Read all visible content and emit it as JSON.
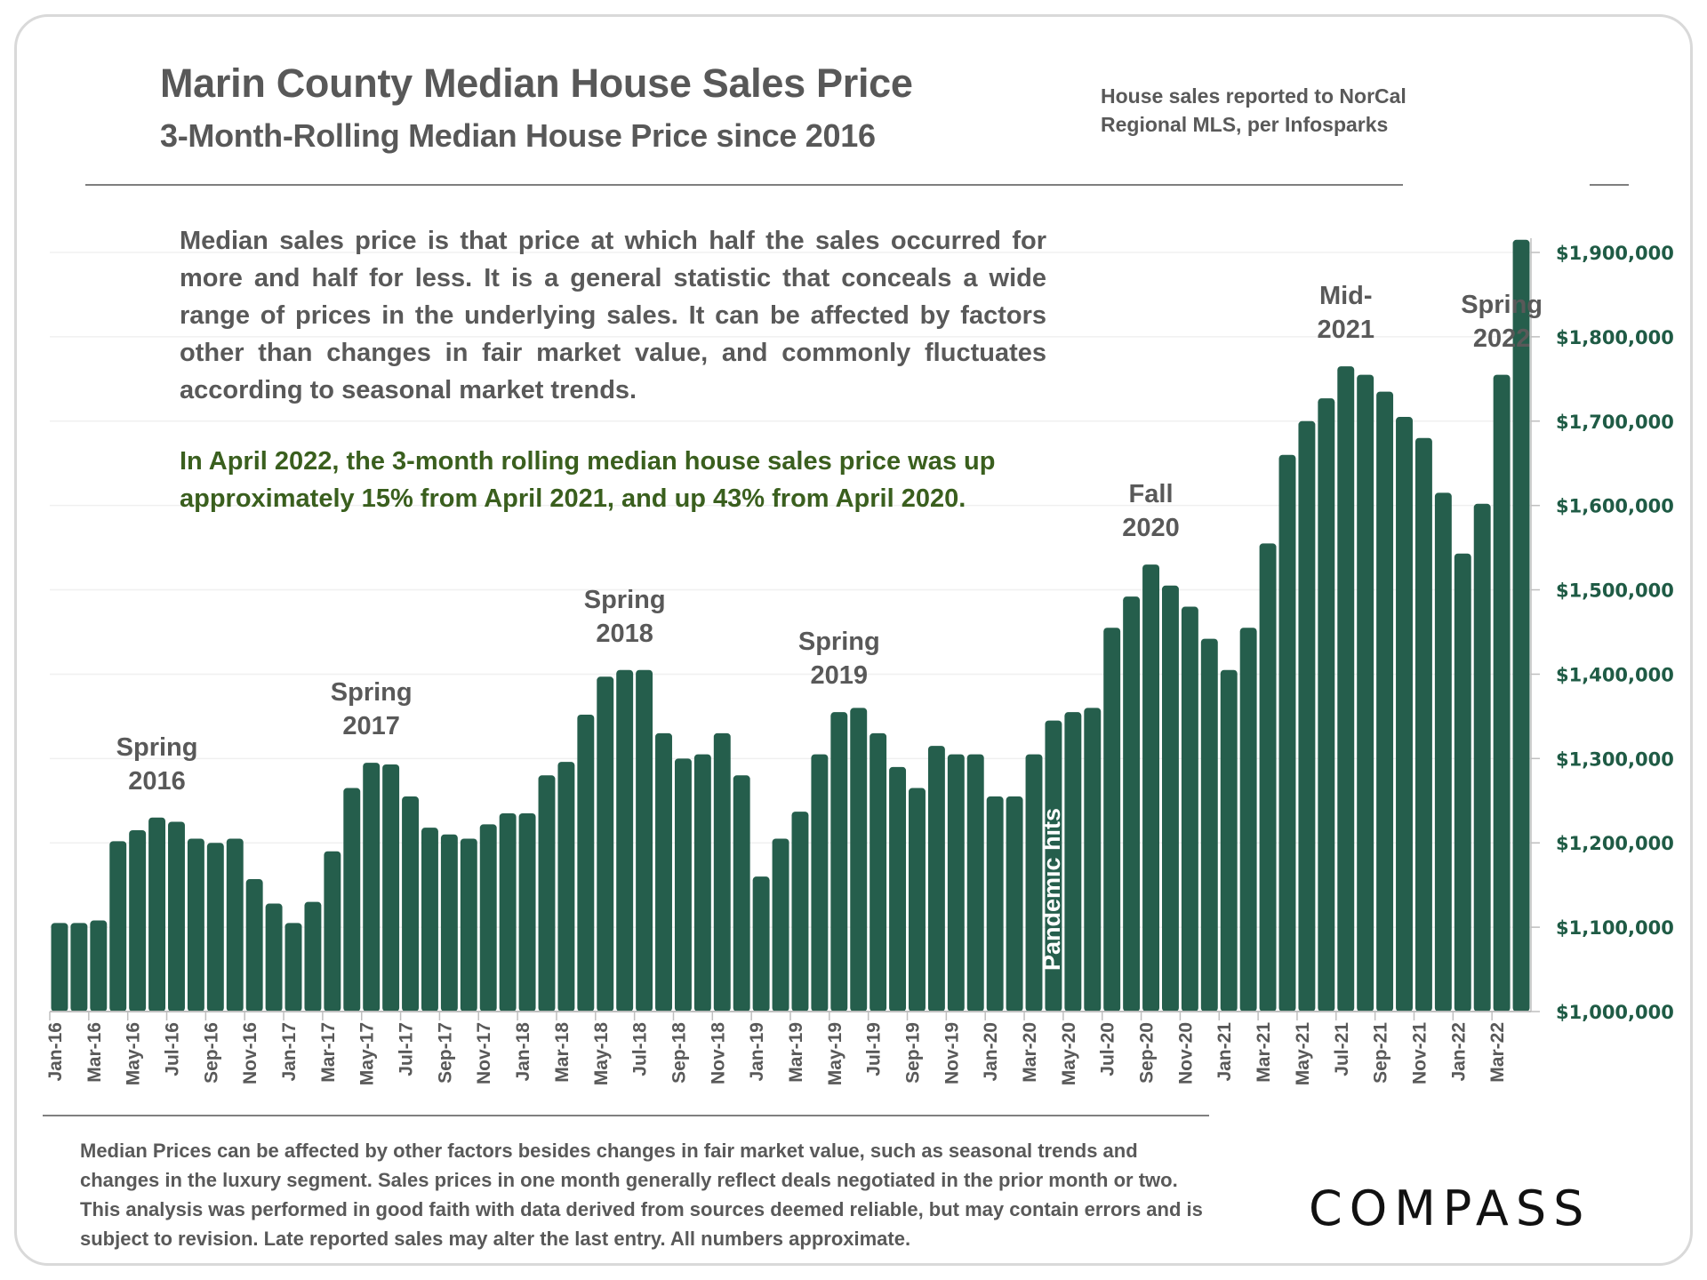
{
  "header": {
    "title": "Marin County Median House Sales Price",
    "subtitle": "3-Month-Rolling Median House Price since 2016",
    "source": [
      "House sales reported to NorCal",
      "Regional MLS, per Infosparks"
    ]
  },
  "description": "Median sales price is that price at which half the sales occurred for more and half for less. It is a general statistic that conceals a wide range of prices in the underlying sales. It can be affected by factors other than changes in fair market value, and commonly fluctuates according to seasonal market trends.",
  "highlight": "In April 2022, the 3-month rolling median house sales price was up approximately 15% from April 2021, and up 43% from April 2020.",
  "annotations": [
    {
      "lines": [
        "Spring",
        "2016"
      ],
      "month": "Jun-16"
    },
    {
      "lines": [
        "Spring",
        "2017"
      ],
      "month": "May-17"
    },
    {
      "lines": [
        "Spring",
        "2018"
      ],
      "month": "Jun-18"
    },
    {
      "lines": [
        "Spring",
        "2019"
      ],
      "month": "May-19"
    },
    {
      "lines": [
        "Fall",
        "2020"
      ],
      "month": "Sep-20"
    },
    {
      "lines": [
        "Mid-",
        "2021"
      ],
      "month": "Jul-21"
    },
    {
      "lines": [
        "Spring",
        "2022"
      ],
      "month": "Mar-22"
    }
  ],
  "pandemic_label": "Pandemic hits",
  "footnote": "Median Prices can be affected by other factors besides changes in fair market value, such as seasonal trends and changes in the luxury segment. Sales prices in one month generally reflect deals negotiated in the prior month or two. This analysis was performed in good faith with data derived from sources deemed reliable, but may contain errors and is subject to revision. Late reported sales may alter the last entry. All numbers approximate.",
  "logo": "COMPASS",
  "colors": {
    "bar": "#255e4c",
    "axis_label": "#1f5b45",
    "text": "#595959",
    "highlight": "#3a5f1e"
  },
  "chart_data": {
    "type": "bar",
    "title": "Marin County Median House Sales Price",
    "subtitle": "3-Month-Rolling Median House Price since 2016",
    "xlabel": "",
    "ylabel": "",
    "ylim": [
      1000000,
      1900000
    ],
    "yticks": [
      1000000,
      1100000,
      1200000,
      1300000,
      1400000,
      1500000,
      1600000,
      1700000,
      1800000,
      1900000
    ],
    "ytick_labels": [
      "$1,000,000",
      "$1,100,000",
      "$1,200,000",
      "$1,300,000",
      "$1,400,000",
      "$1,500,000",
      "$1,600,000",
      "$1,700,000",
      "$1,800,000",
      "$1,900,000"
    ],
    "y_axis_side": "right",
    "grid": true,
    "legend": "none",
    "xtick_labels": [
      "Jan-16",
      "Mar-16",
      "May-16",
      "Jul-16",
      "Sep-16",
      "Nov-16",
      "Jan-17",
      "Mar-17",
      "May-17",
      "Jul-17",
      "Sep-17",
      "Nov-17",
      "Jan-18",
      "Mar-18",
      "May-18",
      "Jul-18",
      "Sep-18",
      "Nov-18",
      "Jan-19",
      "Mar-19",
      "May-19",
      "Jul-19",
      "Sep-19",
      "Nov-19",
      "Jan-20",
      "Mar-20",
      "May-20",
      "Jul-20",
      "Sep-20",
      "Nov-20",
      "Jan-21",
      "Mar-21",
      "May-21",
      "Jul-21",
      "Sep-21",
      "Nov-21",
      "Jan-22",
      "Mar-22"
    ],
    "categories": [
      "Jan-16",
      "Feb-16",
      "Mar-16",
      "Apr-16",
      "May-16",
      "Jun-16",
      "Jul-16",
      "Aug-16",
      "Sep-16",
      "Oct-16",
      "Nov-16",
      "Dec-16",
      "Jan-17",
      "Feb-17",
      "Mar-17",
      "Apr-17",
      "May-17",
      "Jun-17",
      "Jul-17",
      "Aug-17",
      "Sep-17",
      "Oct-17",
      "Nov-17",
      "Dec-17",
      "Jan-18",
      "Feb-18",
      "Mar-18",
      "Apr-18",
      "May-18",
      "Jun-18",
      "Jul-18",
      "Aug-18",
      "Sep-18",
      "Oct-18",
      "Nov-18",
      "Dec-18",
      "Jan-19",
      "Feb-19",
      "Mar-19",
      "Apr-19",
      "May-19",
      "Jun-19",
      "Jul-19",
      "Aug-19",
      "Sep-19",
      "Oct-19",
      "Nov-19",
      "Dec-19",
      "Jan-20",
      "Feb-20",
      "Mar-20",
      "Apr-20",
      "May-20",
      "Jun-20",
      "Jul-20",
      "Aug-20",
      "Sep-20",
      "Oct-20",
      "Nov-20",
      "Dec-20",
      "Jan-21",
      "Feb-21",
      "Mar-21",
      "Apr-21",
      "May-21",
      "Jun-21",
      "Jul-21",
      "Aug-21",
      "Sep-21",
      "Oct-21",
      "Nov-21",
      "Dec-21",
      "Jan-22",
      "Feb-22",
      "Mar-22",
      "Apr-22"
    ],
    "values": [
      1105000,
      1105000,
      1108000,
      1202000,
      1215000,
      1230000,
      1225000,
      1205000,
      1200000,
      1205000,
      1157000,
      1128000,
      1105000,
      1130000,
      1190000,
      1265000,
      1295000,
      1293000,
      1255000,
      1218000,
      1210000,
      1205000,
      1222000,
      1235000,
      1235000,
      1280000,
      1296000,
      1352000,
      1397000,
      1405000,
      1405000,
      1330000,
      1300000,
      1305000,
      1330000,
      1280000,
      1160000,
      1205000,
      1237000,
      1305000,
      1355000,
      1360000,
      1330000,
      1290000,
      1265000,
      1315000,
      1305000,
      1305000,
      1255000,
      1255000,
      1305000,
      1345000,
      1355000,
      1360000,
      1455000,
      1492000,
      1530000,
      1505000,
      1480000,
      1442000,
      1405000,
      1455000,
      1555000,
      1660000,
      1700000,
      1727000,
      1765000,
      1755000,
      1735000,
      1705000,
      1680000,
      1615000,
      1543000,
      1602000,
      1755000,
      1915000
    ]
  }
}
